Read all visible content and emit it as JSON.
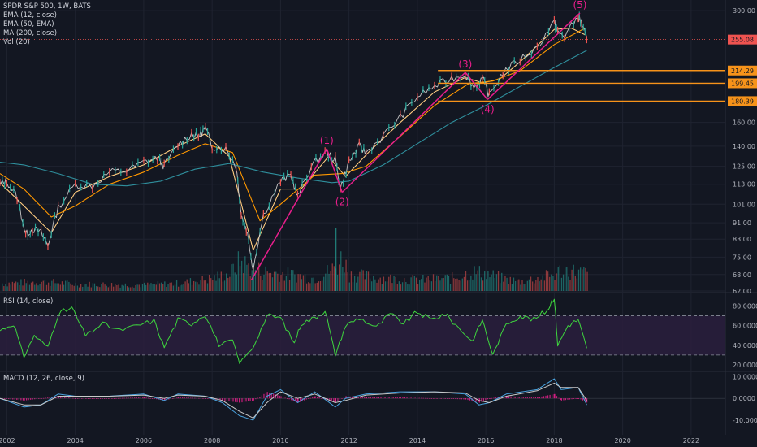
{
  "colors": {
    "background": "#131722",
    "grid": "#1f2330",
    "price_up": "#26a69a",
    "price_down": "#ef5350",
    "price_line": "#c8c8c8",
    "ema12": "#ffcc80",
    "ema50": "#ff9800",
    "ma200": "#2f8f9d",
    "wave_line": "#e91e8c",
    "resistance": "#f7931a",
    "current_price": "#ef5350",
    "rsi_line": "#3ed63e",
    "rsi_band": "#2a1f3d",
    "macd_line": "#4aa3df",
    "signal_line": "#c9c9c9",
    "hist_pos": "#e91e8c",
    "hist_neg": "#e91e8c"
  },
  "legend": {
    "title": "SPDR S&P 500, 1W, BATS",
    "items": [
      "EMA (12, close)",
      "EMA (50, EMA)",
      "MA (200, close)",
      "Vol (20)"
    ]
  },
  "rsi_legend": "RSI (14, close)",
  "macd_legend": "MACD (12, 26, close, 9)",
  "chart_data": [
    {
      "type": "line",
      "panel": "price",
      "scale": "log",
      "price_ticks": [
        "300.00",
        "255.08",
        "214.29",
        "199.45",
        "180.39",
        "160.00",
        "140.00",
        "125.00",
        "113.00",
        "101.00",
        "91.00",
        "83.00",
        "75.00",
        "68.00",
        "62.00"
      ],
      "ylim": [
        62,
        310
      ],
      "xlim": [
        2001.8,
        2023.0
      ],
      "x_ticks": [
        "2002",
        "2004",
        "2006",
        "2008",
        "2010",
        "2012",
        "2014",
        "2016",
        "2018",
        "2020",
        "2022"
      ],
      "current_price": 255.08,
      "current_price_label": "255.08",
      "price_series": {
        "x": [
          2001.8,
          2002.0,
          2002.3,
          2002.55,
          2002.75,
          2003.0,
          2003.2,
          2003.5,
          2004.0,
          2004.5,
          2005.0,
          2005.5,
          2006.0,
          2006.4,
          2006.6,
          2007.0,
          2007.4,
          2007.6,
          2007.8,
          2008.0,
          2008.4,
          2008.7,
          2008.85,
          2009.0,
          2009.2,
          2009.5,
          2010.0,
          2010.3,
          2010.5,
          2010.9,
          2011.3,
          2011.6,
          2011.75,
          2012.0,
          2012.3,
          2012.5,
          2013.0,
          2013.5,
          2014.0,
          2014.5,
          2015.0,
          2015.4,
          2015.65,
          2015.9,
          2016.1,
          2016.5,
          2017.0,
          2017.5,
          2018.0,
          2018.1,
          2018.3,
          2018.7,
          2018.8,
          2018.95
        ],
        "values": [
          113,
          115,
          105,
          85,
          88,
          86,
          80,
          99,
          113,
          112,
          121,
          122,
          128,
          131,
          125,
          141,
          150,
          148,
          155,
          140,
          138,
          125,
          95,
          88,
          70,
          95,
          115,
          119,
          105,
          125,
          135,
          130,
          110,
          128,
          140,
          135,
          148,
          165,
          185,
          196,
          205,
          210,
          195,
          205,
          186,
          212,
          228,
          244,
          282,
          265,
          260,
          290,
          280,
          255
        ]
      },
      "series": [
        {
          "name": "EMA (12, close)",
          "x": [
            2001.8,
            2002.5,
            2003.3,
            2004.0,
            2005.0,
            2006.0,
            2007.0,
            2007.8,
            2008.5,
            2009.2,
            2010.0,
            2010.6,
            2011.4,
            2011.9,
            2012.6,
            2013.5,
            2014.5,
            2015.4,
            2015.9,
            2016.4,
            2017.0,
            2018.0,
            2018.5,
            2018.9
          ],
          "values": [
            114,
            100,
            86,
            108,
            118,
            126,
            140,
            150,
            132,
            78,
            110,
            110,
            132,
            118,
            136,
            160,
            190,
            206,
            200,
            204,
            225,
            270,
            272,
            262
          ]
        },
        {
          "name": "EMA (50, EMA)",
          "x": [
            2001.8,
            2002.5,
            2003.3,
            2004.0,
            2005.0,
            2006.0,
            2007.0,
            2007.8,
            2008.6,
            2009.4,
            2010.0,
            2011.0,
            2011.8,
            2012.5,
            2013.5,
            2014.5,
            2015.5,
            2016.2,
            2017.0,
            2018.0,
            2018.9
          ],
          "values": [
            120,
            110,
            94,
            100,
            113,
            121,
            133,
            142,
            135,
            92,
            101,
            119,
            120,
            125,
            148,
            176,
            199,
            202,
            214,
            248,
            272
          ]
        },
        {
          "name": "MA (200, close)",
          "x": [
            2001.8,
            2002.5,
            2003.5,
            2004.5,
            2005.5,
            2006.5,
            2007.5,
            2008.5,
            2009.5,
            2010.5,
            2011.5,
            2012.0,
            2013.0,
            2014.0,
            2015.0,
            2016.0,
            2017.0,
            2018.0,
            2018.95
          ],
          "values": [
            128,
            126,
            120,
            113,
            112,
            115,
            123,
            127,
            121,
            117,
            114,
            115,
            126,
            142,
            160,
            176,
            196,
            218,
            240
          ]
        }
      ],
      "resistance_levels": [
        214.29,
        199.45,
        180.39
      ],
      "resistance_labels": [
        "214.29",
        "199.45",
        "180.39"
      ],
      "wave_points": [
        {
          "label": "(1)",
          "x": 2011.35,
          "y": 138
        },
        {
          "label": "(2)",
          "x": 2011.8,
          "y": 108
        },
        {
          "label": "(3)",
          "x": 2015.4,
          "y": 212
        },
        {
          "label": "(4)",
          "x": 2016.05,
          "y": 182
        },
        {
          "label": "(5)",
          "x": 2018.75,
          "y": 296
        }
      ],
      "wave_lines": [
        {
          "from": [
            2009.15,
            66
          ],
          "to": [
            2011.35,
            138
          ]
        },
        {
          "from": [
            2011.35,
            138
          ],
          "to": [
            2011.8,
            108
          ]
        },
        {
          "from": [
            2011.8,
            108
          ],
          "to": [
            2015.4,
            212
          ]
        },
        {
          "from": [
            2015.4,
            212
          ],
          "to": [
            2016.05,
            182
          ]
        },
        {
          "from": [
            2016.05,
            182
          ],
          "to": [
            2018.75,
            296
          ]
        }
      ],
      "volume": {
        "x": [
          2002,
          2003,
          2004,
          2005,
          2006,
          2007,
          2008,
          2008.5,
          2008.8,
          2009.0,
          2009.5,
          2010,
          2010.5,
          2011,
          2011.6,
          2011.8,
          2012,
          2013,
          2014,
          2015,
          2015.6,
          2016,
          2016.5,
          2017,
          2018,
          2018.2,
          2018.9
        ],
        "values": [
          18,
          22,
          16,
          15,
          14,
          18,
          30,
          40,
          70,
          60,
          45,
          40,
          36,
          30,
          55,
          80,
          38,
          30,
          26,
          30,
          45,
          40,
          28,
          22,
          38,
          50,
          42
        ]
      }
    },
    {
      "type": "line",
      "panel": "rsi",
      "ylim": [
        15,
        92
      ],
      "y_ticks": [
        "80.0000",
        "60.0000",
        "40.0000",
        "20.0000"
      ],
      "bands": [
        70,
        30
      ],
      "x": [
        2001.8,
        2002.2,
        2002.5,
        2002.8,
        2003.2,
        2003.5,
        2003.9,
        2004.3,
        2004.8,
        2005.3,
        2005.8,
        2006.3,
        2006.6,
        2007.0,
        2007.4,
        2007.8,
        2008.2,
        2008.6,
        2008.8,
        2009.2,
        2009.6,
        2010.0,
        2010.4,
        2010.6,
        2011.0,
        2011.3,
        2011.6,
        2011.9,
        2012.3,
        2012.8,
        2013.2,
        2013.6,
        2014.0,
        2014.4,
        2014.8,
        2015.2,
        2015.6,
        2015.9,
        2016.2,
        2016.6,
        2017.0,
        2017.4,
        2017.8,
        2018.0,
        2018.1,
        2018.4,
        2018.7,
        2018.95
      ],
      "values": [
        55,
        62,
        28,
        50,
        38,
        72,
        78,
        50,
        62,
        55,
        60,
        65,
        38,
        66,
        62,
        72,
        40,
        45,
        22,
        38,
        70,
        68,
        42,
        62,
        68,
        76,
        30,
        60,
        68,
        58,
        72,
        62,
        74,
        66,
        72,
        58,
        44,
        66,
        30,
        62,
        70,
        66,
        76,
        90,
        40,
        60,
        66,
        37
      ]
    },
    {
      "type": "line",
      "panel": "macd",
      "ylim": [
        -13,
        12
      ],
      "y_ticks": [
        "10.0000",
        "0.0000",
        "-10.0000"
      ],
      "x": [
        2001.8,
        2002.5,
        2003.0,
        2003.5,
        2004.0,
        2005.0,
        2006.0,
        2006.6,
        2007.0,
        2007.8,
        2008.3,
        2008.8,
        2009.2,
        2009.6,
        2010.0,
        2010.5,
        2011.0,
        2011.6,
        2011.9,
        2012.5,
        2013.5,
        2014.5,
        2015.4,
        2015.8,
        2016.1,
        2016.6,
        2017.5,
        2018.0,
        2018.2,
        2018.7,
        2018.95
      ],
      "macd": [
        0,
        -4,
        -3,
        2,
        1,
        1,
        2,
        -1,
        2,
        1,
        -2,
        -8,
        -10,
        1,
        4,
        -2,
        3,
        -4,
        0,
        2,
        3,
        3,
        2,
        -3,
        -2,
        2,
        4,
        9,
        4,
        5,
        -3
      ],
      "signal": [
        0,
        -3,
        -3,
        1,
        1,
        1,
        1.5,
        0,
        1.5,
        1,
        -1,
        -6,
        -9,
        -2,
        3,
        0,
        2,
        -2,
        -1,
        1.5,
        2.5,
        3,
        2.5,
        -1,
        -2,
        1,
        3.5,
        7,
        5,
        5,
        -1
      ],
      "hist": [
        0,
        -1,
        0,
        1,
        0,
        0,
        0.5,
        -1,
        0.5,
        0,
        -1,
        -2,
        -1,
        3,
        1,
        -2,
        1,
        -2,
        1,
        0.5,
        0.5,
        0,
        -0.5,
        -2,
        0,
        1,
        0.5,
        2,
        -1,
        0,
        -2
      ]
    }
  ]
}
